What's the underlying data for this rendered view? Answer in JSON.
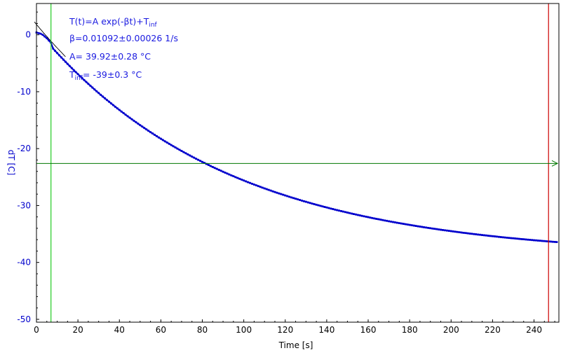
{
  "chart_data": {
    "type": "scatter",
    "title": "",
    "xlabel": "Time [s]",
    "ylabel": "dT [C]",
    "xlim": [
      0,
      252
    ],
    "ylim": [
      -50.5,
      5.5
    ],
    "xticks": [
      0,
      20,
      40,
      60,
      80,
      100,
      120,
      140,
      160,
      180,
      200,
      220,
      240
    ],
    "yticks": [
      0,
      -10,
      -20,
      -30,
      -40,
      -50
    ],
    "grid": false,
    "legend": "none",
    "colors": {
      "data": "#0000cc",
      "fit": "#000000",
      "y_axis_text": "#0000cc",
      "x_axis_text": "#000000",
      "green_cursor": "#22cc22",
      "green_hline": "#007700",
      "red_cursor": "#cc0000",
      "annotation": "#1a1ae0"
    },
    "cursors": {
      "green_vertical_x": 7,
      "red_vertical_x": 247,
      "green_horizontal_y": -22.6
    },
    "fit": {
      "model": "T(t)=A exp(-βt)+T_inf",
      "beta": 0.01092,
      "A": 39.92,
      "T_inf": -39
    },
    "series": [
      {
        "start_x": 0,
        "end_x": 251,
        "step_x": 1,
        "early_points": [
          [
            0,
            0.4
          ],
          [
            1,
            0.3
          ],
          [
            2,
            0.2
          ],
          [
            3,
            0.0
          ],
          [
            4,
            -0.3
          ],
          [
            5,
            -0.6
          ],
          [
            6,
            -1.0
          ],
          [
            7,
            -1.4
          ]
        ]
      }
    ],
    "annotations": {
      "line1_main": "T(t)=A exp(-βt)+T",
      "line1_sub": "inf",
      "line2": "β=0.01092±0.00026 1/s",
      "line3": "A= 39.92±0.28 °C",
      "line4_main": "T",
      "line4_sub": "inf",
      "line4_rest": "= -39±0.3 °C"
    }
  }
}
